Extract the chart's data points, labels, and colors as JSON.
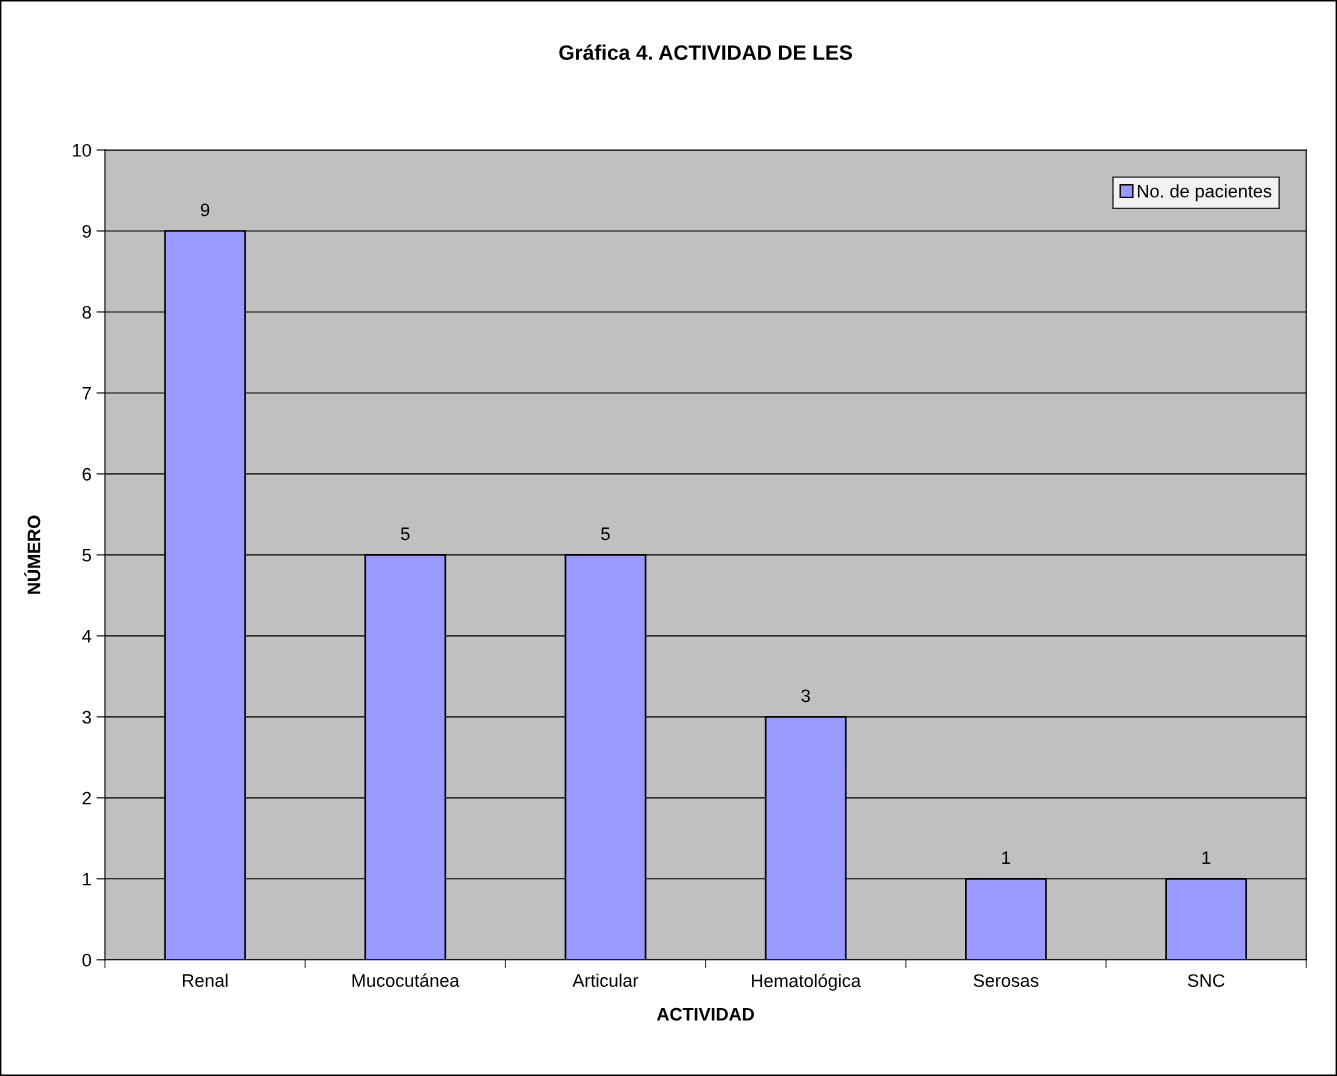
{
  "chart_data": {
    "type": "bar",
    "title": "Gráfica 4. ACTIVIDAD DE LES",
    "xlabel": "ACTIVIDAD",
    "ylabel": "NÚMERO",
    "categories": [
      "Renal",
      "Mucocutánea",
      "Articular",
      "Hematológica",
      "Serosas",
      "SNC"
    ],
    "series": [
      {
        "name": "No. de pacientes",
        "color": "#9999ff",
        "values": [
          9,
          5,
          5,
          3,
          1,
          1
        ]
      }
    ],
    "ylim": [
      0,
      10
    ],
    "yticks": [
      0,
      1,
      2,
      3,
      4,
      5,
      6,
      7,
      8,
      9,
      10
    ],
    "grid": "y",
    "legend": "top right",
    "data_labels": true
  }
}
